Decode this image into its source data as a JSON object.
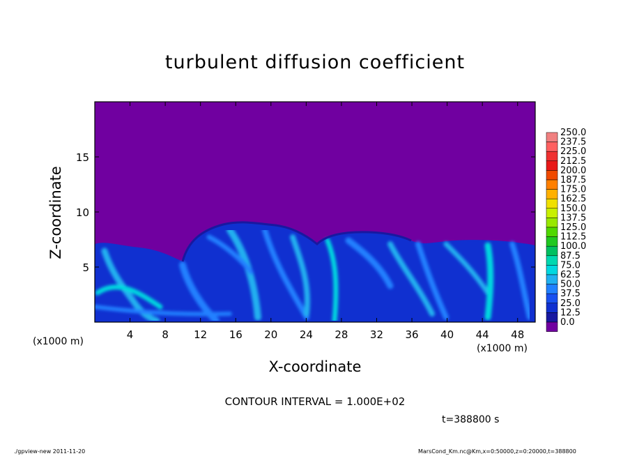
{
  "chart_data": {
    "type": "heatmap",
    "title": "turbulent diffusion coefficient",
    "xlabel": "X-coordinate",
    "ylabel": "Z-coordinate",
    "x_unit": "(x1000 m)",
    "xlim": [
      0,
      50
    ],
    "ylim": [
      0,
      20
    ],
    "x_ticks": [
      "4",
      "8",
      "12",
      "16",
      "20",
      "24",
      "28",
      "32",
      "36",
      "40",
      "44",
      "48"
    ],
    "y_ticks": [
      "5",
      "10",
      "15"
    ],
    "x_tick_values": [
      4,
      8,
      12,
      16,
      20,
      24,
      28,
      32,
      36,
      40,
      44,
      48
    ],
    "y_tick_values": [
      5,
      10,
      15
    ],
    "colorbar": {
      "labels": [
        "250.0",
        "237.5",
        "225.0",
        "212.5",
        "200.0",
        "187.5",
        "175.0",
        "162.5",
        "150.0",
        "137.5",
        "125.0",
        "112.5",
        "100.0",
        "87.5",
        "75.0",
        "62.5",
        "50.0",
        "37.5",
        "25.0",
        "12.5",
        "0.0"
      ],
      "colors": [
        "#f08080",
        "#ff6060",
        "#f03030",
        "#e81818",
        "#f04a00",
        "#ff8000",
        "#ffb000",
        "#f0e000",
        "#c8f000",
        "#98e800",
        "#50d800",
        "#20c820",
        "#00c060",
        "#00d8b0",
        "#00d8e0",
        "#20b0f0",
        "#2080ff",
        "#1850f0",
        "#1030d0",
        "#1818a0",
        "#7000a0"
      ],
      "position": "right"
    },
    "background_color": "#7000a0",
    "note_contour": "CONTOUR INTERVAL = 1.000E+02",
    "time": "t=388800  s",
    "footer_left": "./gpview-new   2011-11-20",
    "footer_right": "MarsCond_Km.nc@Km,x=0:50000,z=0:20000,t=388800"
  }
}
